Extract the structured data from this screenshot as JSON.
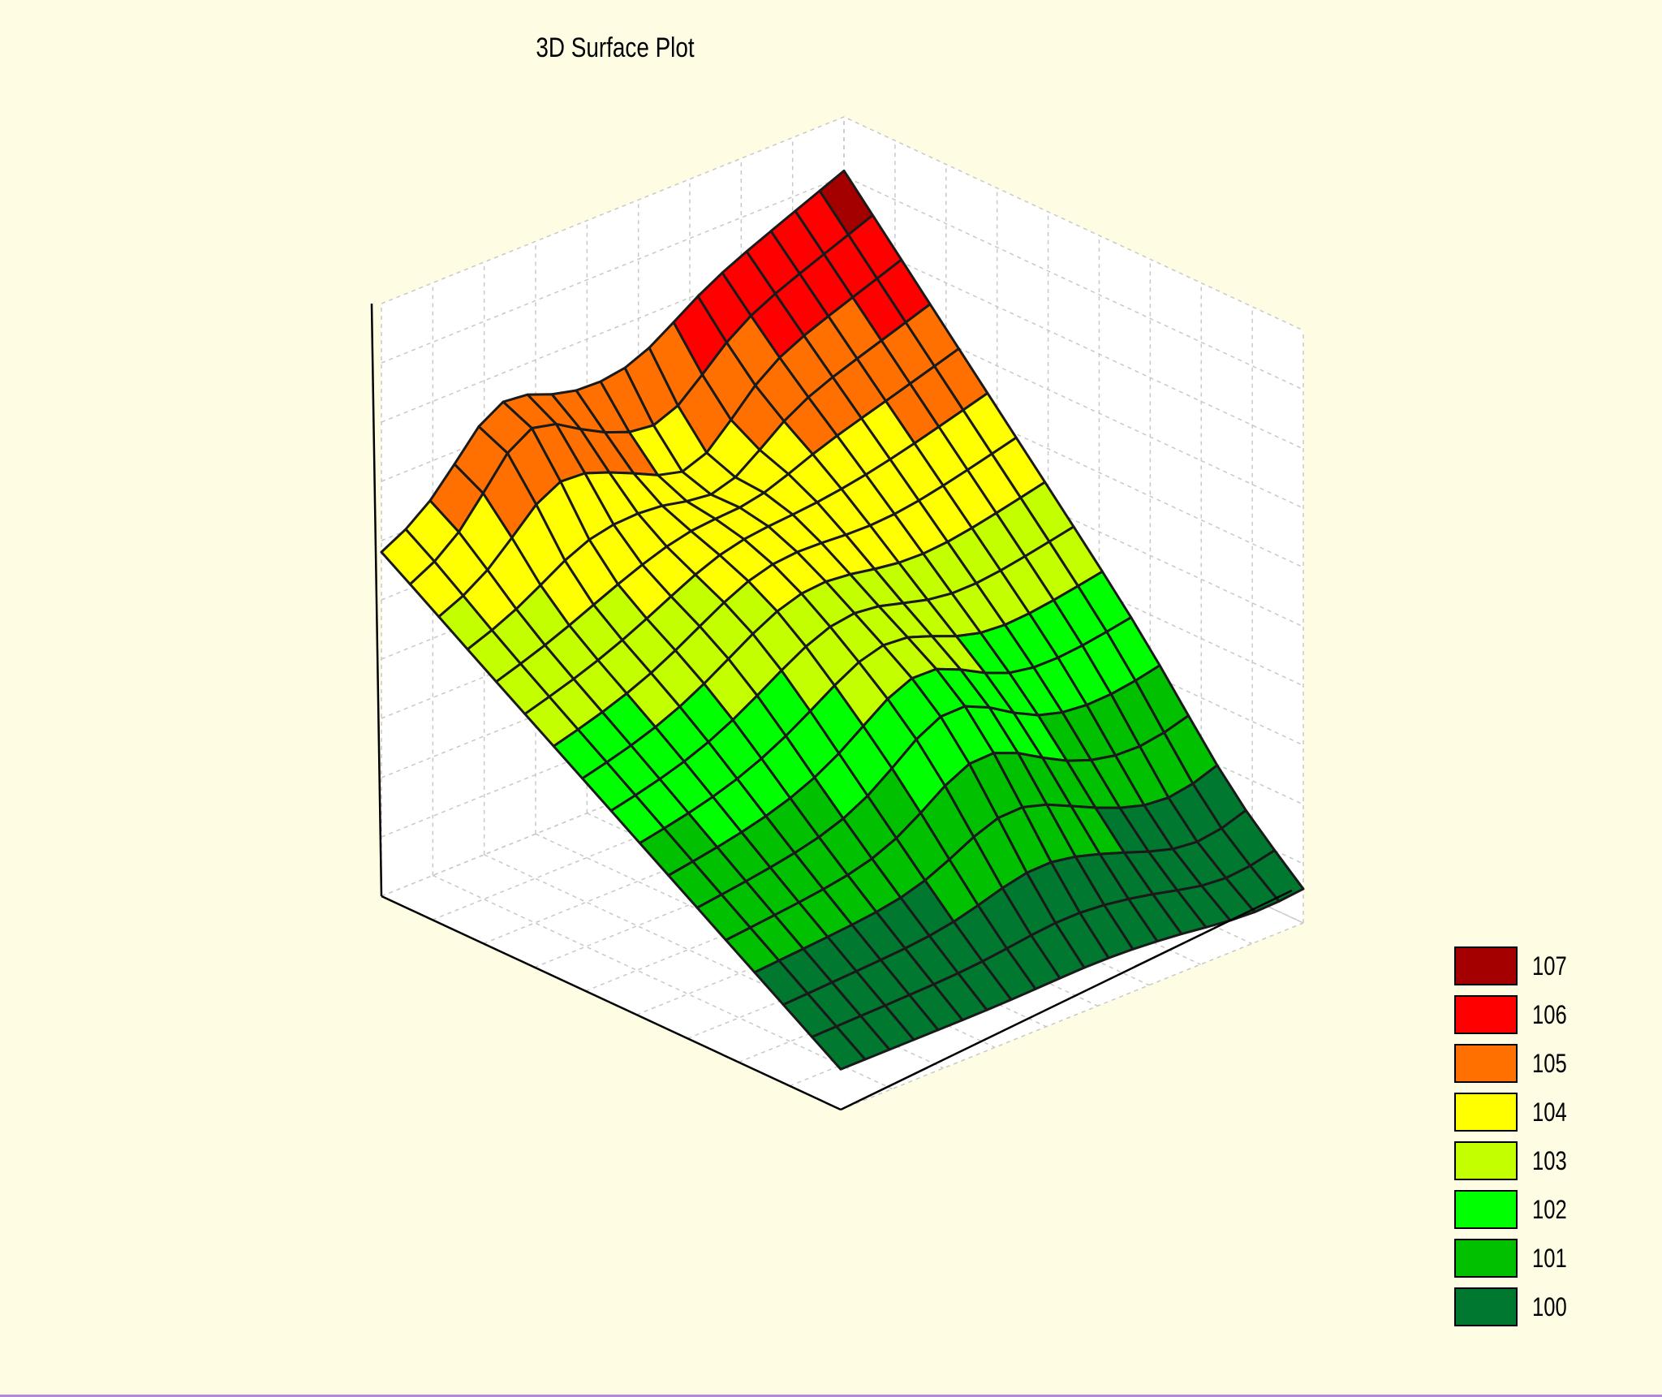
{
  "chart_data": {
    "type": "surface3d",
    "title": "3D Surface Plot",
    "grid": true,
    "legend_position": "bottom-right",
    "surface": {
      "rows": 16,
      "cols": 19,
      "z_left_corner": 104.5,
      "z_back_corner": 107.4,
      "z_right_corner": 100.0,
      "z_front_corner": 100.0,
      "z_left_ridge_peak": 105.8,
      "z_center_saddle": 104.4
    },
    "legend": [
      {
        "label": "107",
        "color": "#a50000"
      },
      {
        "label": "106",
        "color": "#ff0000"
      },
      {
        "label": "105",
        "color": "#ff7000"
      },
      {
        "label": "104",
        "color": "#ffff00"
      },
      {
        "label": "103",
        "color": "#c4ff00"
      },
      {
        "label": "102",
        "color": "#00ff00"
      },
      {
        "label": "101",
        "color": "#00c000"
      },
      {
        "label": "100",
        "color": "#007830"
      }
    ]
  }
}
